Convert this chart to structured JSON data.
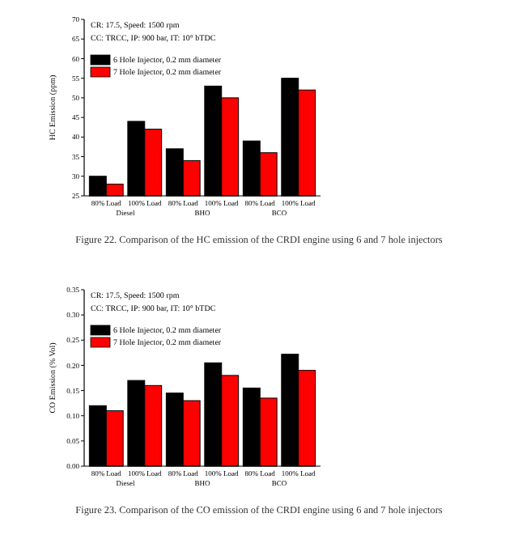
{
  "chart_data": [
    {
      "type": "bar",
      "ylabel": "HC Emission (ppm)",
      "categories": [
        "80% Load",
        "100% Load",
        "80% Load",
        "100% Load",
        "80% Load",
        "100% Load"
      ],
      "series": [
        {
          "name": "6 Hole Injector, 0.2 mm diameter",
          "color": "#000000",
          "values": [
            30,
            44,
            37,
            53,
            39,
            55
          ]
        },
        {
          "name": "7 Hole Injector, 0.2 mm diameter",
          "color": "#ff0000",
          "values": [
            28,
            42,
            34,
            50,
            36,
            52
          ]
        }
      ],
      "ylim": [
        25,
        70
      ],
      "yticks": [
        25,
        30,
        35,
        40,
        45,
        50,
        55,
        60,
        65,
        70
      ],
      "legend": "top left",
      "grid": false,
      "annotations": [
        "CR: 17.5, Speed: 1500 rpm",
        "CC: TRCC, IP: 900 bar, IT: 10° bTDC",
        "Diesel",
        "BHO",
        "BCO",
        "Figure 22. Comparison of the HC emission of the CRDI engine using 6 and 7 hole injectors"
      ]
    },
    {
      "type": "bar",
      "ylabel": "CO Emission (% Vol)",
      "categories": [
        "80% Load",
        "100% Load",
        "80% Load",
        "100% Load",
        "80% Load",
        "100% Load"
      ],
      "series": [
        {
          "name": "6 Hole Injector, 0.2 mm diameter",
          "color": "#000000",
          "values": [
            0.12,
            0.17,
            0.145,
            0.205,
            0.155,
            0.222
          ]
        },
        {
          "name": "7 Hole Injector, 0.2 mm diameter",
          "color": "#ff0000",
          "values": [
            0.11,
            0.16,
            0.13,
            0.18,
            0.135,
            0.19
          ]
        }
      ],
      "ylim": [
        0,
        0.35
      ],
      "yticks": [
        {
          "value": 0,
          "label": "0.00"
        },
        {
          "value": 0.05,
          "label": "0.05"
        },
        {
          "value": 0.1,
          "label": "0.10"
        },
        {
          "value": 0.15,
          "label": "0.15"
        },
        {
          "value": 0.2,
          "label": "0.20"
        },
        {
          "value": 0.25,
          "label": "0.25"
        },
        {
          "value": 0.3,
          "label": "0.30"
        },
        {
          "value": 0.35,
          "label": "0.35"
        }
      ],
      "legend": "top left",
      "grid": false,
      "annotations": [
        "CR: 17.5, Speed: 1500 rpm",
        "CC: TRCC, IP: 900 bar, IT: 10° bTDC",
        "Diesel",
        "BHO",
        "BCO",
        "Figure 23. Comparison of the CO emission of the CRDI engine using 6 and 7 hole injectors"
      ]
    }
  ]
}
